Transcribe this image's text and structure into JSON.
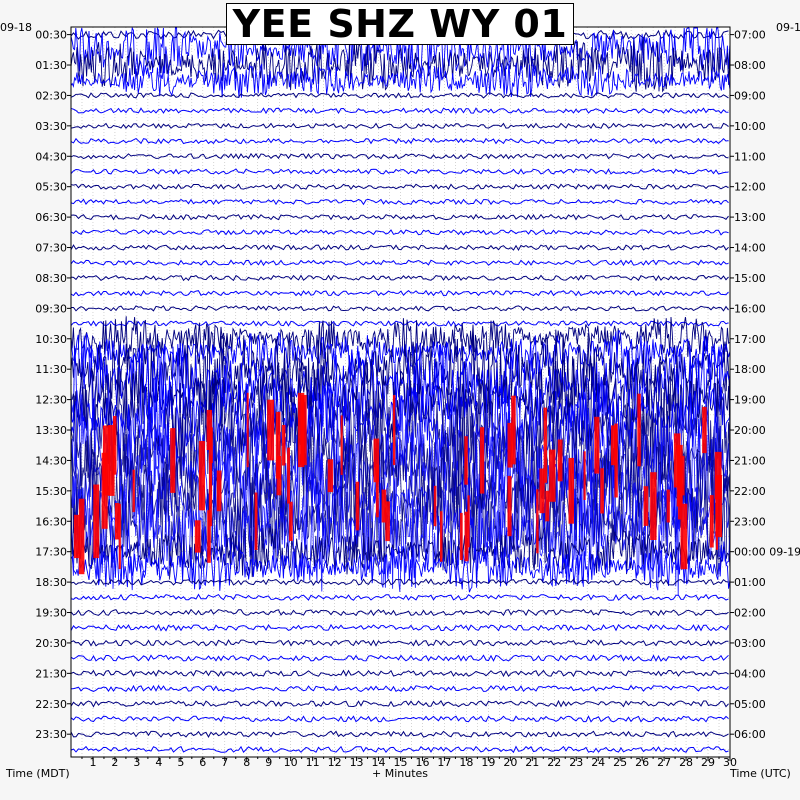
{
  "chart_data": {
    "type": "line",
    "title": "YEE SHZ WY 01",
    "left_date": "09-18",
    "right_date": "09-1",
    "left_axis_label": "Time (MDT)",
    "right_axis_label": "Time (UTC)",
    "x_axis_label": "+ Minutes",
    "x_ticks": [
      "1",
      "2",
      "3",
      "4",
      "5",
      "6",
      "7",
      "8",
      "9",
      "10",
      "11",
      "12",
      "13",
      "14",
      "15",
      "16",
      "17",
      "18",
      "19",
      "20",
      "21",
      "22",
      "23",
      "24",
      "25",
      "26",
      "27",
      "28",
      "29",
      "30"
    ],
    "xlim": [
      0,
      30
    ],
    "left_ticks": [
      "00:30",
      "01:30",
      "02:30",
      "03:30",
      "04:30",
      "05:30",
      "06:30",
      "07:30",
      "08:30",
      "09:30",
      "10:30",
      "11:30",
      "12:30",
      "13:30",
      "14:30",
      "15:30",
      "16:30",
      "17:30",
      "18:30",
      "19:30",
      "20:30",
      "21:30",
      "22:30",
      "23:30"
    ],
    "right_ticks": [
      "07:00",
      "08:00",
      "09:00",
      "10:00",
      "11:00",
      "12:00",
      "13:00",
      "14:00",
      "15:00",
      "16:00",
      "17:00",
      "18:00",
      "19:00",
      "20:00",
      "21:00",
      "22:00",
      "23:00",
      "00:00 09-19",
      "01:00",
      "02:00",
      "03:00",
      "04:00",
      "05:00",
      "06:00"
    ],
    "trace_count": 48,
    "trace_minutes": 30,
    "trace_colors": [
      "#000080",
      "#0000ff"
    ],
    "clip_color": "#ff0000",
    "grid": true,
    "activity": [
      {
        "traces": [
          0
        ],
        "level": 0.18
      },
      {
        "traces": [
          1,
          2
        ],
        "level": 0.55
      },
      {
        "traces": [
          3
        ],
        "level": 0.35
      },
      {
        "traces": [
          4,
          5,
          6,
          7,
          8,
          9,
          10,
          11,
          12,
          13,
          14,
          15,
          16,
          17,
          18,
          19
        ],
        "level": 0.08
      },
      {
        "traces": [
          20,
          21
        ],
        "level": 0.45
      },
      {
        "traces": [
          22,
          23,
          24,
          25
        ],
        "level": 0.9
      },
      {
        "traces": [
          26,
          27,
          28,
          29,
          30,
          31,
          32,
          33
        ],
        "level": 1.0,
        "clipped": true
      },
      {
        "traces": [
          34,
          35
        ],
        "level": 0.5
      },
      {
        "traces": [
          36,
          37,
          38,
          39,
          40,
          41,
          42,
          43,
          44,
          45,
          46,
          47
        ],
        "level": 0.1
      }
    ]
  }
}
